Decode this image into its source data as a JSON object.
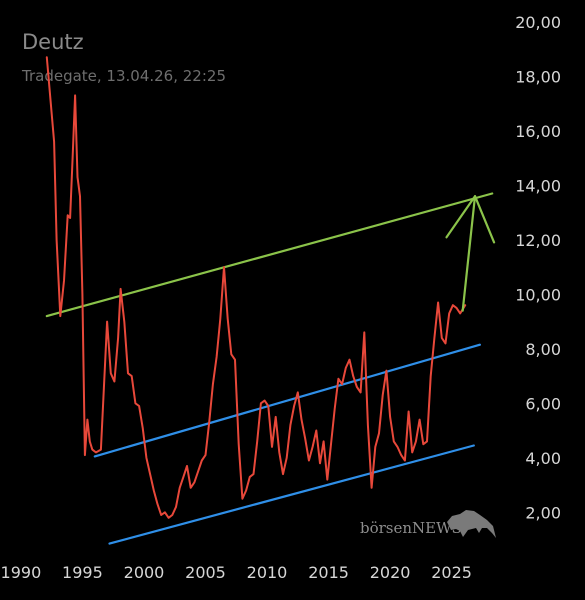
{
  "header": {
    "title": "Deutz",
    "subtitle": "Tradegate, 13.04.26, 22:25"
  },
  "watermark": {
    "brand": "börsenNEWS"
  },
  "colors": {
    "price": "#e8483a",
    "upper_trend": "#8bc34a",
    "channel": "#2f8fe8",
    "arrow": "#8bc34a",
    "ticks": "#d6d6d6"
  },
  "chart_data": {
    "type": "line",
    "title": "Deutz",
    "xlabel": "",
    "ylabel": "",
    "xlim": [
      1988.3,
      2029.5
    ],
    "ylim": [
      0.8,
      20.8
    ],
    "grid": false,
    "y_axis_position": "right",
    "xticks": [
      1990,
      1995,
      2000,
      2005,
      2010,
      2015,
      2020,
      2025
    ],
    "xtick_labels": [
      "1990",
      "1995",
      "2000",
      "2005",
      "2010",
      "2015",
      "2020",
      "2025"
    ],
    "yticks": [
      2,
      4,
      6,
      8,
      10,
      12,
      14,
      16,
      18,
      20
    ],
    "ytick_labels": [
      "2,00",
      "4,00",
      "6,00",
      "8,00",
      "10,00",
      "12,00",
      "14,00",
      "16,00",
      "18,00",
      "20,00"
    ],
    "series": [
      {
        "x": [
          1992.1,
          1992.7,
          1992.9,
          1993.2,
          1993.5,
          1993.8,
          1994.0,
          1994.2,
          1994.4,
          1994.6,
          1994.8,
          1995.0,
          1995.2,
          1995.4,
          1995.6,
          1995.8,
          1996.1,
          1996.5,
          1997.0,
          1997.3,
          1997.6,
          1997.9,
          1998.1,
          1998.4,
          1998.7,
          1999.0,
          1999.3,
          1999.6,
          1999.9,
          2000.2,
          2000.5,
          2000.8,
          2001.1,
          2001.4,
          2001.7,
          2002.0,
          2002.3,
          2002.6,
          2002.9,
          2003.2,
          2003.5,
          2003.8,
          2004.1,
          2004.4,
          2004.7,
          2005.0,
          2005.3,
          2005.6,
          2005.9,
          2006.2,
          2006.5,
          2006.8,
          2007.1,
          2007.4,
          2007.7,
          2008.0,
          2008.3,
          2008.6,
          2008.9,
          2009.2,
          2009.5,
          2009.8,
          2010.1,
          2010.4,
          2010.7,
          2011.0,
          2011.3,
          2011.6,
          2011.9,
          2012.2,
          2012.5,
          2012.8,
          2013.1,
          2013.4,
          2013.7,
          2014.0,
          2014.3,
          2014.6,
          2014.9,
          2015.2,
          2015.5,
          2015.8,
          2016.1,
          2016.4,
          2016.7,
          2017.0,
          2017.3,
          2017.6,
          2017.9,
          2018.2,
          2018.5,
          2018.8,
          2019.1,
          2019.4,
          2019.7,
          2020.0,
          2020.3,
          2020.6,
          2020.9,
          2021.2,
          2021.5,
          2021.8,
          2022.1,
          2022.4,
          2022.7,
          2023.0,
          2023.3,
          2023.6,
          2023.9,
          2024.2,
          2024.5,
          2024.8,
          2025.1,
          2025.4,
          2025.7,
          2026.1
        ],
        "y": [
          18.7,
          15.6,
          12.0,
          9.2,
          10.5,
          12.9,
          12.8,
          15.0,
          17.3,
          14.3,
          13.6,
          10.0,
          4.1,
          5.4,
          4.6,
          4.3,
          4.2,
          4.3,
          9.0,
          7.1,
          6.8,
          8.4,
          10.2,
          9.0,
          7.1,
          7.0,
          6.0,
          5.9,
          5.1,
          4.0,
          3.4,
          2.8,
          2.3,
          1.9,
          2.0,
          1.8,
          1.9,
          2.2,
          2.9,
          3.3,
          3.7,
          2.9,
          3.1,
          3.5,
          3.9,
          4.1,
          5.3,
          6.7,
          7.7,
          9.1,
          11.0,
          9.1,
          7.8,
          7.6,
          4.5,
          2.5,
          2.8,
          3.3,
          3.4,
          4.6,
          6.0,
          6.1,
          5.9,
          4.4,
          5.5,
          4.2,
          3.4,
          4.0,
          5.2,
          5.9,
          6.4,
          5.4,
          4.7,
          3.9,
          4.4,
          5.0,
          3.8,
          4.6,
          3.2,
          4.5,
          5.8,
          6.9,
          6.7,
          7.3,
          7.6,
          7.0,
          6.6,
          6.4,
          8.6,
          5.2,
          2.9,
          4.4,
          4.9,
          6.3,
          7.2,
          5.5,
          4.6,
          4.4,
          4.1,
          3.9,
          5.7,
          4.2,
          4.6,
          5.4,
          4.5,
          4.6,
          7.0,
          8.4,
          9.7,
          8.4,
          8.2,
          9.3,
          9.6,
          9.5,
          9.3,
          9.6
        ]
      }
    ],
    "trendlines": [
      {
        "role": "upper-green",
        "x": [
          1992.1,
          2028.3
        ],
        "y": [
          9.2,
          13.7
        ]
      },
      {
        "role": "channel-top-blue",
        "x": [
          1996.0,
          2027.3
        ],
        "y": [
          4.05,
          8.15
        ]
      },
      {
        "role": "channel-bottom-blue",
        "x": [
          1997.2,
          2026.8
        ],
        "y": [
          0.85,
          4.45
        ]
      }
    ],
    "annotations": [
      {
        "type": "arrow",
        "from": [
          2025.9,
          9.4
        ],
        "to": [
          2026.9,
          13.6
        ]
      }
    ]
  }
}
